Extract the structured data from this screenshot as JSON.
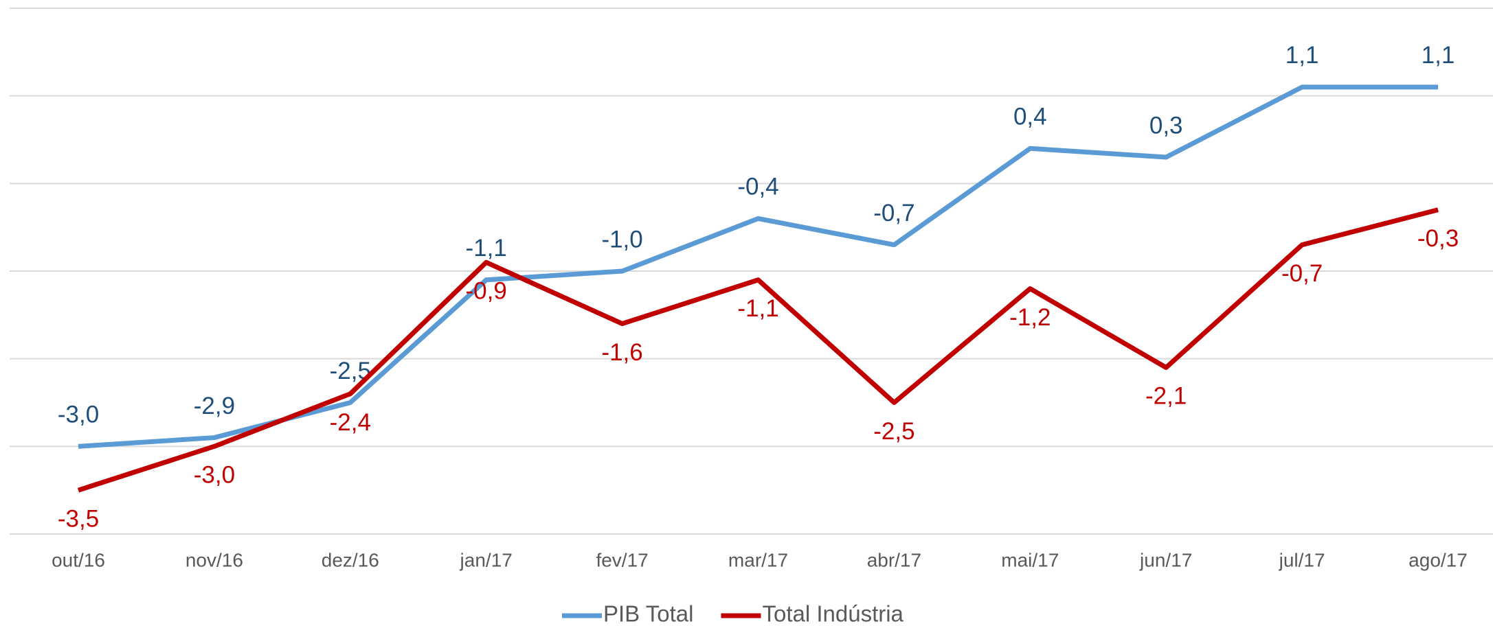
{
  "chart_data": {
    "type": "line",
    "categories": [
      "out/16",
      "nov/16",
      "dez/16",
      "jan/17",
      "fev/17",
      "mar/17",
      "abr/17",
      "mai/17",
      "jun/17",
      "jul/17",
      "ago/17"
    ],
    "series": [
      {
        "name": "PIB Total",
        "color": "#5b9bd5",
        "label_color": "#1f4e79",
        "values": [
          -3.0,
          -2.9,
          -2.5,
          -1.1,
          -1.0,
          -0.4,
          -0.7,
          0.4,
          0.3,
          1.1,
          1.1
        ],
        "value_labels": [
          "-3,0",
          "-2,9",
          "-2,5",
          "-1,1",
          "-1,0",
          "-0,4",
          "-0,7",
          "0,4",
          "0,3",
          "1,1",
          "1,1"
        ]
      },
      {
        "name": "Total Indústria",
        "color": "#c00000",
        "label_color": "#c00000",
        "values": [
          -3.5,
          -3.0,
          -2.4,
          -0.9,
          -1.6,
          -1.1,
          -2.5,
          -1.2,
          -2.1,
          -0.7,
          -0.3
        ],
        "value_labels": [
          "-3,5",
          "-3,0",
          "-2,4",
          "-0,9",
          "-1,6",
          "-1,1",
          "-2,5",
          "-1,2",
          "-2,1",
          "-0,7",
          "-0,3"
        ]
      }
    ],
    "ylim": [
      -4,
      2
    ],
    "yticks": [
      -4,
      -3,
      -2,
      -1,
      0,
      1,
      2
    ],
    "grid": true,
    "legend": "bottom"
  }
}
